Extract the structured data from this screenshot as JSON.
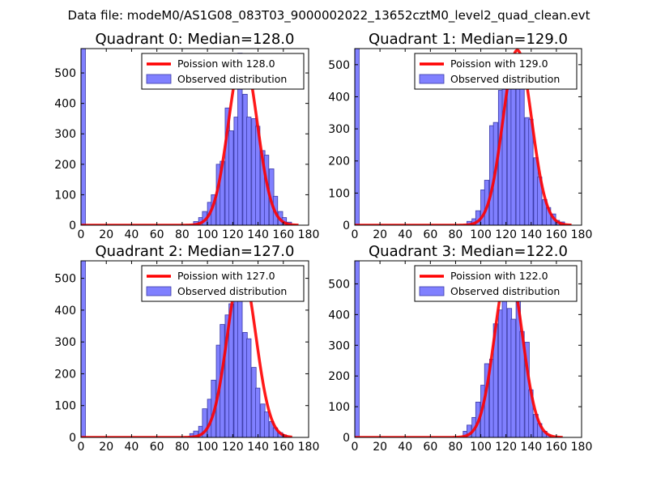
{
  "figure": {
    "suptitle": "Data file: modeM0/AS1G08_083T03_9000002022_13652cztM0_level2_quad_clean.evt"
  },
  "colors": {
    "bar_fill": "#8080ff",
    "bar_edge": "#3a3aa8",
    "fit_line": "#ff0000"
  },
  "chart_data": [
    {
      "type": "bar",
      "title": "Quadrant 0: Median=128.0",
      "xlim": [
        0,
        180
      ],
      "ylim": [
        0,
        580
      ],
      "xticks": [
        0,
        20,
        40,
        60,
        80,
        100,
        120,
        140,
        160,
        180
      ],
      "yticks": [
        0,
        100,
        200,
        300,
        400,
        500
      ],
      "bin_width": 3.5,
      "bins": [
        [
          0,
          580
        ],
        [
          89,
          12
        ],
        [
          93,
          25
        ],
        [
          96,
          45
        ],
        [
          100,
          75
        ],
        [
          103,
          100
        ],
        [
          107,
          200
        ],
        [
          110,
          210
        ],
        [
          114,
          385
        ],
        [
          117,
          310
        ],
        [
          121,
          355
        ],
        [
          124,
          565
        ],
        [
          128,
          430
        ],
        [
          131,
          355
        ],
        [
          135,
          350
        ],
        [
          138,
          325
        ],
        [
          142,
          245
        ],
        [
          145,
          230
        ],
        [
          149,
          185
        ],
        [
          152,
          95
        ],
        [
          156,
          45
        ],
        [
          159,
          25
        ],
        [
          163,
          10
        ]
      ],
      "fit": {
        "mean": 128.0,
        "peak": 560,
        "x_range": [
          0,
          172
        ]
      },
      "legend": {
        "fit_label": "Poission with 128.0",
        "bar_label": "Observed distribution"
      }
    },
    {
      "type": "bar",
      "title": "Quadrant 1: Median=129.0",
      "xlim": [
        0,
        180
      ],
      "ylim": [
        0,
        550
      ],
      "xticks": [
        0,
        20,
        40,
        60,
        80,
        100,
        120,
        140,
        160,
        180
      ],
      "yticks": [
        0,
        100,
        200,
        300,
        400,
        500
      ],
      "bin_width": 3.5,
      "bins": [
        [
          0,
          550
        ],
        [
          89,
          12
        ],
        [
          93,
          20
        ],
        [
          96,
          45
        ],
        [
          100,
          110
        ],
        [
          103,
          140
        ],
        [
          107,
          310
        ],
        [
          110,
          320
        ],
        [
          114,
          420
        ],
        [
          117,
          440
        ],
        [
          121,
          515
        ],
        [
          124,
          460
        ],
        [
          128,
          535
        ],
        [
          131,
          445
        ],
        [
          135,
          335
        ],
        [
          138,
          330
        ],
        [
          142,
          210
        ],
        [
          145,
          150
        ],
        [
          149,
          80
        ],
        [
          152,
          55
        ],
        [
          156,
          35
        ],
        [
          159,
          15
        ],
        [
          163,
          10
        ]
      ],
      "fit": {
        "mean": 129.0,
        "peak": 545,
        "x_range": [
          0,
          172
        ]
      },
      "legend": {
        "fit_label": "Poission with 129.0",
        "bar_label": "Observed distribution"
      }
    },
    {
      "type": "bar",
      "title": "Quadrant 2: Median=127.0",
      "xlim": [
        0,
        180
      ],
      "ylim": [
        0,
        555
      ],
      "xticks": [
        0,
        20,
        40,
        60,
        80,
        100,
        120,
        140,
        160,
        180
      ],
      "yticks": [
        0,
        100,
        200,
        300,
        400,
        500
      ],
      "bin_width": 3.5,
      "bins": [
        [
          0,
          555
        ],
        [
          86,
          12
        ],
        [
          89,
          20
        ],
        [
          93,
          35
        ],
        [
          96,
          90
        ],
        [
          100,
          120
        ],
        [
          103,
          180
        ],
        [
          107,
          290
        ],
        [
          110,
          355
        ],
        [
          114,
          385
        ],
        [
          117,
          420
        ],
        [
          121,
          455
        ],
        [
          124,
          450
        ],
        [
          128,
          330
        ],
        [
          131,
          310
        ],
        [
          135,
          220
        ],
        [
          138,
          155
        ],
        [
          142,
          105
        ],
        [
          145,
          80
        ],
        [
          149,
          50
        ],
        [
          152,
          30
        ],
        [
          156,
          15
        ],
        [
          159,
          8
        ]
      ],
      "fit": {
        "mean": 127.0,
        "peak": 530,
        "x_range": [
          0,
          167
        ]
      },
      "legend": {
        "fit_label": "Poission with 127.0",
        "bar_label": "Observed distribution"
      }
    },
    {
      "type": "bar",
      "title": "Quadrant 3: Median=122.0",
      "xlim": [
        0,
        180
      ],
      "ylim": [
        0,
        575
      ],
      "xticks": [
        0,
        20,
        40,
        60,
        80,
        100,
        120,
        140,
        160,
        180
      ],
      "yticks": [
        0,
        100,
        200,
        300,
        400,
        500
      ],
      "bin_width": 3.5,
      "bins": [
        [
          0,
          575
        ],
        [
          86,
          20
        ],
        [
          89,
          40
        ],
        [
          93,
          65
        ],
        [
          96,
          115
        ],
        [
          100,
          170
        ],
        [
          103,
          240
        ],
        [
          107,
          255
        ],
        [
          110,
          370
        ],
        [
          114,
          415
        ],
        [
          117,
          550
        ],
        [
          121,
          420
        ],
        [
          124,
          385
        ],
        [
          128,
          525
        ],
        [
          131,
          345
        ],
        [
          135,
          310
        ],
        [
          138,
          155
        ],
        [
          142,
          75
        ],
        [
          145,
          45
        ],
        [
          149,
          20
        ],
        [
          152,
          8
        ]
      ],
      "fit": {
        "mean": 122.0,
        "peak": 550,
        "x_range": [
          0,
          165
        ]
      },
      "legend": {
        "fit_label": "Poission with 122.0",
        "bar_label": "Observed distribution"
      }
    }
  ]
}
